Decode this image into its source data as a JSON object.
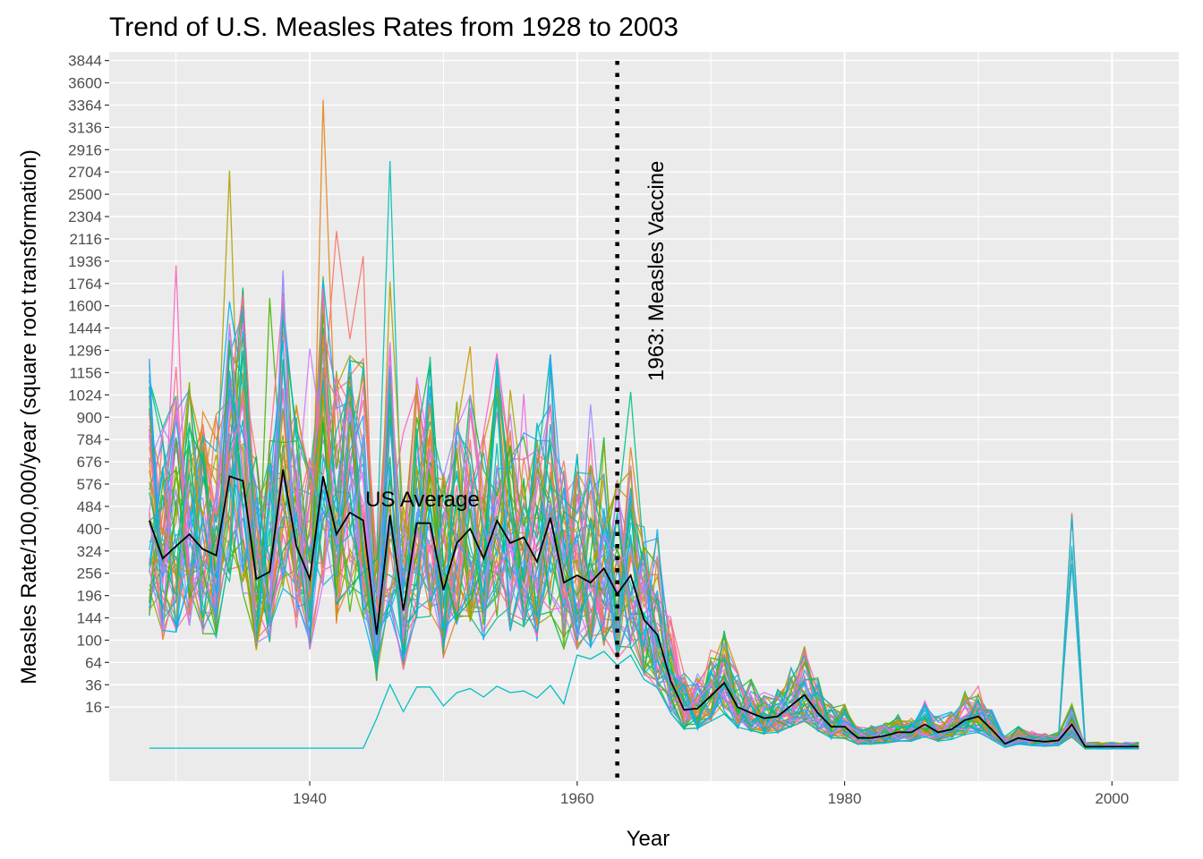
{
  "chart_data": {
    "type": "line",
    "title": "Trend of U.S. Measles Rates from 1928 to 2003",
    "xlabel": "Year",
    "ylabel": "Measles Rate/100,000/year (square root transformation)",
    "x_scale": "linear",
    "y_scale": "sqrt",
    "xlim": [
      1925,
      2005
    ],
    "ylim": [
      0,
      3900
    ],
    "x_ticks": [
      1940,
      1960,
      1980,
      2000
    ],
    "y_ticks": [
      16,
      36,
      64,
      100,
      144,
      196,
      256,
      324,
      400,
      484,
      576,
      676,
      784,
      900,
      1024,
      1156,
      1296,
      1444,
      1600,
      1764,
      1936,
      2116,
      2304,
      2500,
      2704,
      2916,
      3136,
      3364,
      3600,
      3844
    ],
    "grid": true,
    "legend": "none",
    "vline": {
      "x": 1963,
      "label": "1963: Measles Vaccine",
      "style": "dotted",
      "color": "#000000"
    },
    "average_series": {
      "name": "US Average",
      "color": "#000000",
      "x": [
        1928,
        1929,
        1930,
        1931,
        1932,
        1933,
        1934,
        1935,
        1936,
        1937,
        1938,
        1939,
        1940,
        1941,
        1942,
        1943,
        1944,
        1945,
        1946,
        1947,
        1948,
        1949,
        1950,
        1951,
        1952,
        1953,
        1954,
        1955,
        1956,
        1957,
        1958,
        1959,
        1960,
        1961,
        1962,
        1963,
        1964,
        1965,
        1966,
        1967,
        1968,
        1969,
        1970,
        1971,
        1972,
        1973,
        1974,
        1975,
        1976,
        1977,
        1978,
        1979,
        1980,
        1981,
        1982,
        1983,
        1984,
        1985,
        1986,
        1987,
        1988,
        1989,
        1990,
        1991,
        1992,
        1993,
        1994,
        1995,
        1996,
        1997,
        1998,
        1999,
        2000,
        2001,
        2002
      ],
      "y": [
        430,
        300,
        340,
        380,
        330,
        310,
        610,
        590,
        240,
        260,
        640,
        340,
        240,
        610,
        380,
        460,
        430,
        110,
        450,
        160,
        420,
        420,
        210,
        350,
        400,
        300,
        430,
        350,
        370,
        290,
        440,
        230,
        250,
        230,
        270,
        200,
        250,
        140,
        110,
        40,
        14,
        15,
        25,
        38,
        16,
        12,
        9,
        10,
        17,
        26,
        12,
        5,
        5,
        1.5,
        1.5,
        2,
        3,
        3,
        6,
        3,
        4,
        8,
        10,
        4,
        0.5,
        1.5,
        1,
        0.8,
        1,
        6,
        0.2,
        0.2,
        0.2,
        0.2,
        0.2
      ]
    },
    "series_note": "Remaining colored lines are individual U.S. state series (unlabeled).",
    "series_palette": [
      "#F8766D",
      "#E7851E",
      "#D09400",
      "#B2A100",
      "#89AC00",
      "#45B500",
      "#00BC51",
      "#00C087",
      "#00C0B2",
      "#00BCD6",
      "#00B3F2",
      "#29A3FF",
      "#9C8DFF",
      "#D277FF",
      "#F166E8",
      "#FF61C7",
      "#FF689E",
      "#FF6C91"
    ],
    "annotation_label": "US Average"
  }
}
